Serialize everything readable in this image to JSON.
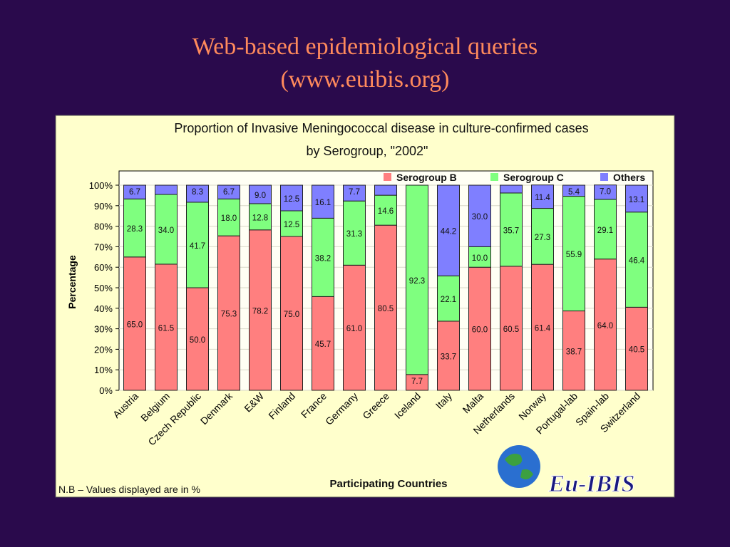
{
  "slide": {
    "title_line1": "Web-based epidemiological queries",
    "title_line2": "(www.euibis.org)"
  },
  "logo": {
    "text": "Eu-IBIS"
  },
  "note": "N.B – Values displayed are in %",
  "chart_data": {
    "type": "bar",
    "stacked": true,
    "title_line1": "Proportion of Invasive Meningococcal disease in culture-confirmed cases",
    "title_line2": "by Serogroup, \"2002\"",
    "xlabel": "Participating Countries",
    "ylabel": "Percentage",
    "ylim": [
      0,
      100
    ],
    "yticks": [
      "0%",
      "10%",
      "20%",
      "30%",
      "40%",
      "50%",
      "60%",
      "70%",
      "80%",
      "90%",
      "100%"
    ],
    "grid": true,
    "legend_position": "top-right",
    "categories": [
      "Austria",
      "Belgium",
      "Czech Republic",
      "Denmark",
      "E&W",
      "Finland",
      "France",
      "Germany",
      "Greece",
      "Iceland",
      "Italy",
      "Malta",
      "Netherlands",
      "Norway",
      "Portugal-lab",
      "Spain-lab",
      "Switzerland"
    ],
    "series": [
      {
        "name": "Serogroup B",
        "color": "#ff7f7f",
        "values": [
          65.0,
          61.5,
          50.0,
          75.3,
          78.2,
          75.0,
          45.7,
          61.0,
          80.5,
          7.7,
          33.7,
          60.0,
          60.5,
          61.4,
          38.7,
          64.0,
          40.5
        ]
      },
      {
        "name": "Serogroup C",
        "color": "#7fff7f",
        "values": [
          28.3,
          34.0,
          41.7,
          18.0,
          12.8,
          12.5,
          38.2,
          31.3,
          14.6,
          92.3,
          22.1,
          10.0,
          35.7,
          27.3,
          55.9,
          29.1,
          46.4
        ]
      },
      {
        "name": "Others",
        "color": "#7f7fff",
        "values": [
          6.7,
          null,
          8.3,
          6.7,
          9.0,
          12.5,
          16.1,
          7.7,
          null,
          0,
          44.2,
          30.0,
          null,
          11.4,
          5.4,
          7.0,
          13.1
        ]
      }
    ]
  }
}
